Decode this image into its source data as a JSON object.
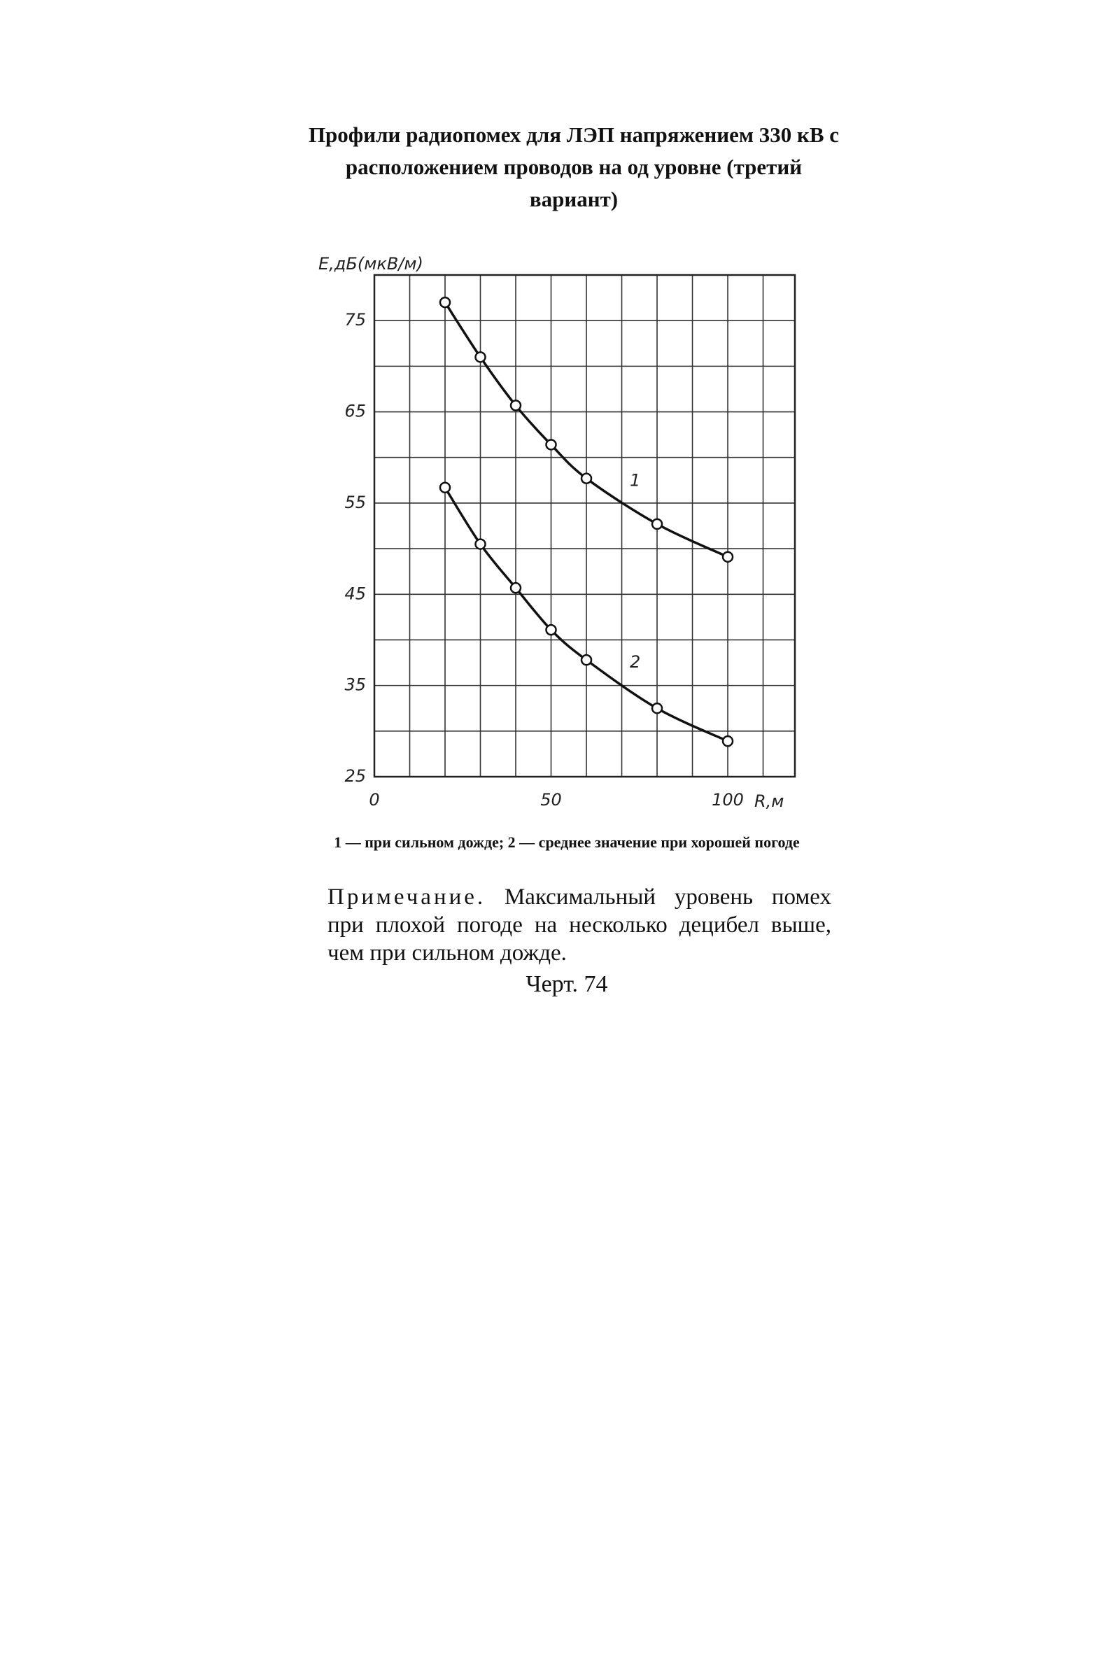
{
  "chart_data": {
    "type": "line",
    "title": "Профили радиопомех для ЛЭП напряжением 330 кВ с расположением проводов на од уровне (третий вариант)",
    "ylabel": "E,дБ(мкВ/м)",
    "xlabel": "R,м",
    "x": [
      20,
      30,
      40,
      50,
      60,
      80,
      100
    ],
    "series": [
      {
        "name": "1",
        "color": "#111111",
        "values": [
          77,
          71,
          65.7,
          61.4,
          57.7,
          52.7,
          49.1
        ]
      },
      {
        "name": "2",
        "color": "#111111",
        "values": [
          56.7,
          50.5,
          45.7,
          41.1,
          37.8,
          32.5,
          28.9
        ]
      }
    ],
    "xlim": [
      0,
      119
    ],
    "ylim": [
      25,
      80
    ],
    "xticks": [
      0,
      50,
      100
    ],
    "yticks": [
      25,
      35,
      45,
      55,
      65,
      75
    ],
    "grid": true,
    "caption": "1 — при сильном дожде; 2 — среднее значение при хорошей погоде"
  },
  "note_label": "Примечание.",
  "note_text": "Максимальный уровень помех при плохой погоде на несколько децибел выше, чем при сильном дожде.",
  "figure_label": "Черт. 74"
}
